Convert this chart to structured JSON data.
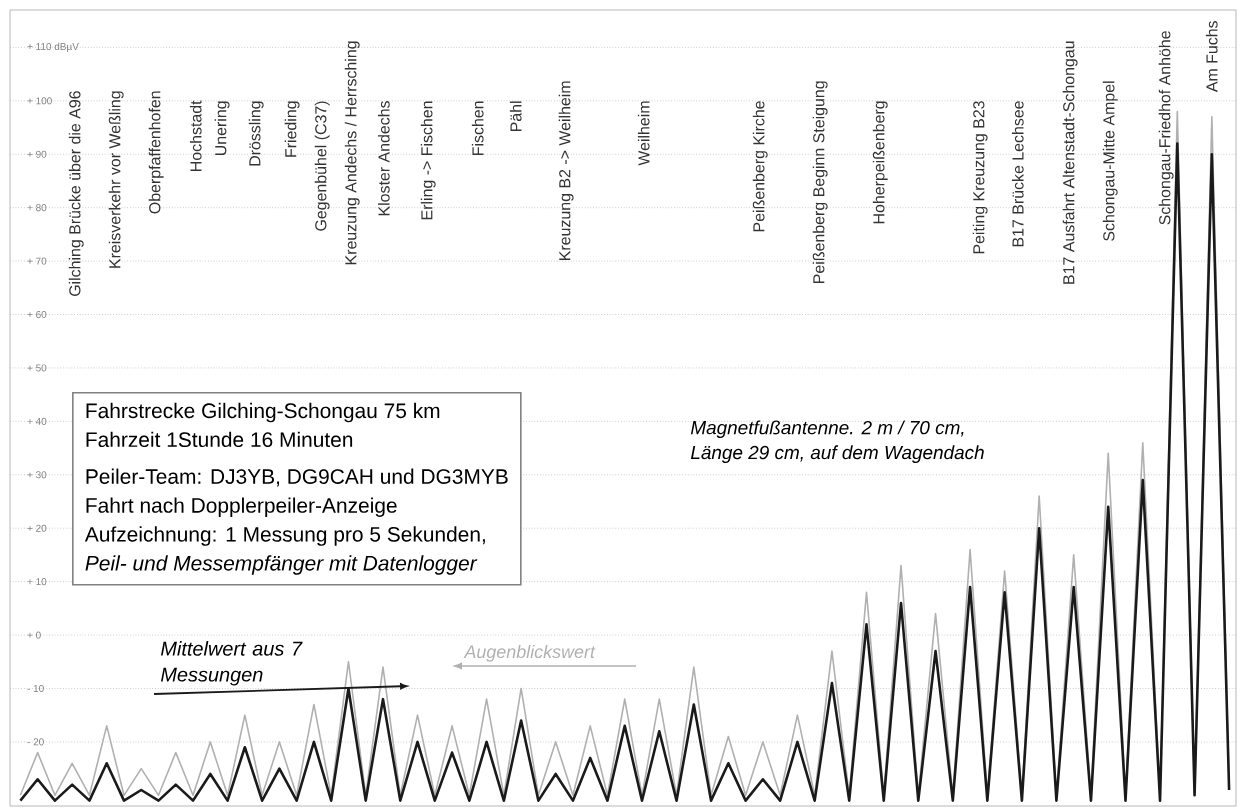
{
  "chart_data": {
    "type": "line",
    "categories": [
      null,
      null,
      null,
      null,
      null,
      null,
      null,
      null,
      null,
      null,
      null,
      null,
      null,
      null,
      null,
      null,
      null,
      null,
      null,
      null,
      null,
      null,
      null,
      null,
      null,
      null,
      null,
      null,
      null,
      null,
      null,
      null,
      null,
      null,
      null,
      null,
      null,
      null,
      null,
      null,
      null,
      null,
      null,
      null,
      null,
      null,
      null,
      null,
      null,
      null,
      null,
      null,
      null,
      null,
      null,
      null,
      null,
      null,
      null,
      null,
      null,
      null,
      null,
      null,
      null,
      null,
      null,
      null,
      null,
      null,
      null
    ],
    "series": [
      {
        "name": "Augenblickswert",
        "color": "#b0b0b0",
        "values": [
          -30,
          -22,
          -30,
          -24,
          -30,
          -17,
          -30,
          -25,
          -30,
          -22,
          -30,
          -20,
          -30,
          -15,
          -30,
          -20,
          -30,
          -13,
          -30,
          -5,
          -30,
          -6,
          -30,
          -15,
          -30,
          -17,
          -30,
          -12,
          -30,
          -10,
          -30,
          -20,
          -30,
          -17,
          -30,
          -12,
          -30,
          -12,
          -30,
          -6,
          -30,
          -19,
          -30,
          -20,
          -30,
          -15,
          -30,
          -3,
          -30,
          8,
          -30,
          13,
          -30,
          4,
          -30,
          16,
          -30,
          12,
          -30,
          26,
          -30,
          15,
          -30,
          34,
          -30,
          36,
          -30,
          98,
          -30,
          97,
          -28
        ]
      },
      {
        "name": "Mittelwert aus 7 Messungen",
        "color": "#1a1a1a",
        "values": [
          -31,
          -27,
          -31,
          -28,
          -31,
          -24,
          -31,
          -29,
          -31,
          -28,
          -31,
          -26,
          -31,
          -21,
          -31,
          -25,
          -31,
          -20,
          -31,
          -10,
          -31,
          -12,
          -31,
          -20,
          -31,
          -22,
          -31,
          -20,
          -31,
          -16,
          -31,
          -26,
          -31,
          -23,
          -31,
          -17,
          -31,
          -18,
          -31,
          -13,
          -31,
          -24,
          -31,
          -27,
          -31,
          -20,
          -31,
          -9,
          -31,
          2,
          -31,
          6,
          -31,
          -3,
          -31,
          9,
          -31,
          8,
          -31,
          20,
          -31,
          9,
          -31,
          24,
          -31,
          29,
          -31,
          92,
          -30,
          90,
          -29
        ]
      }
    ],
    "ylim": [
      -32,
      117
    ],
    "yticks": [
      {
        "value": -20,
        "label": "- 20"
      },
      {
        "value": -10,
        "label": "- 10"
      },
      {
        "value": 0,
        "label": "+ 0"
      },
      {
        "value": 10,
        "label": "+ 10"
      },
      {
        "value": 20,
        "label": "+ 20"
      },
      {
        "value": 30,
        "label": "+ 30"
      },
      {
        "value": 40,
        "label": "+ 40"
      },
      {
        "value": 50,
        "label": "+ 50"
      },
      {
        "value": 60,
        "label": "+ 60"
      },
      {
        "value": 70,
        "label": "+ 70"
      },
      {
        "value": 80,
        "label": "+ 80"
      },
      {
        "value": 90,
        "label": "+ 90"
      },
      {
        "value": 100,
        "label": "+ 100"
      },
      {
        "value": 110,
        "label": "+ 110 dBµV"
      }
    ],
    "grid": "y",
    "legend": false,
    "tick_labels": "y",
    "annotations": [
      "Fahrstrecke Gilching-Schongau 75 km",
      "Fahrzeit 1Stunde 16 Minuten",
      "Peiler-Team: DJ3YB, DG9CAH und DG3MYB",
      "Fahrt nach Dopplerpeiler-Anzeige",
      "Aufzeichnung: 1 Messung pro 5 Sekunden,",
      "Peil- und Messempfänger mit Datenlogger",
      "Magnetfußantenne. 2 m / 70 cm,",
      "Länge 29 cm, auf dem Wagendach",
      "Gilching Brücke über die A96",
      "Kreisverkehr vor Weßling",
      "Oberpfaffenhofen",
      "Hochstadt",
      "Unering",
      "Drössling",
      "Frieding",
      "Gegenbühel (C37)",
      "Kreuzung Andechs / Herrsching",
      "Kloster Andechs",
      "Erling -> Fischen",
      "Fischen",
      "Pähl",
      "Kreuzung B2 -> Weilheim",
      "Weilheim",
      "Peißenberg Kirche",
      "Peißenberg Beginn Steigung",
      "Hoherpeißenberg",
      "Peiting Kreuzung B23",
      "B17 Brücke Lechsee",
      "B17 Ausfahrt Altenstadt-Schongau",
      "Schongau-Mitte Ampel",
      "Schongau-Friedhof Anhöhe",
      "Am Fuchs"
    ]
  }
}
